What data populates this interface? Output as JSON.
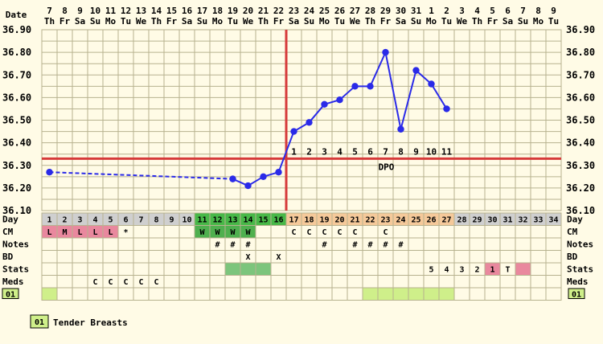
{
  "chart_data": {
    "type": "line",
    "header": {
      "date_label": "Date",
      "dates": [
        "7",
        "8",
        "9",
        "10",
        "11",
        "12",
        "13",
        "14",
        "15",
        "16",
        "17",
        "18",
        "19",
        "20",
        "21",
        "22",
        "23",
        "24",
        "25",
        "26",
        "27",
        "28",
        "29",
        "30",
        "31",
        "1",
        "2",
        "3",
        "4",
        "5",
        "6",
        "7",
        "8",
        "9"
      ],
      "weekdays": [
        "Th",
        "Fr",
        "Sa",
        "Su",
        "Mo",
        "Tu",
        "We",
        "Th",
        "Fr",
        "Sa",
        "Su",
        "Mo",
        "Tu",
        "We",
        "Th",
        "Fr",
        "Sa",
        "Su",
        "Mo",
        "Tu",
        "We",
        "Th",
        "Fr",
        "Sa",
        "Su",
        "Mo",
        "Tu",
        "We",
        "Th",
        "Fr",
        "Sa",
        "Su",
        "Mo",
        "Tu"
      ]
    },
    "y_ticks": [
      "36.90",
      "36.80",
      "36.70",
      "36.60",
      "36.50",
      "36.40",
      "36.30",
      "36.20",
      "36.10"
    ],
    "ylim": [
      36.1,
      36.9
    ],
    "coverline": 36.33,
    "ovulation_day": 16,
    "dpo_label": "DPO",
    "dpo_numbers": [
      "1",
      "2",
      "3",
      "4",
      "5",
      "6",
      "7",
      "8",
      "9",
      "10",
      "11"
    ],
    "temps": [
      {
        "day": 1,
        "temp": 36.27
      },
      {
        "day": 13,
        "temp": 36.24
      },
      {
        "day": 14,
        "temp": 36.21
      },
      {
        "day": 15,
        "temp": 36.25
      },
      {
        "day": 16,
        "temp": 36.27
      },
      {
        "day": 17,
        "temp": 36.45
      },
      {
        "day": 18,
        "temp": 36.49
      },
      {
        "day": 19,
        "temp": 36.57
      },
      {
        "day": 20,
        "temp": 36.59
      },
      {
        "day": 21,
        "temp": 36.65
      },
      {
        "day": 22,
        "temp": 36.65
      },
      {
        "day": 23,
        "temp": 36.8
      },
      {
        "day": 24,
        "temp": 36.46
      },
      {
        "day": 25,
        "temp": 36.72
      },
      {
        "day": 26,
        "temp": 36.66
      },
      {
        "day": 27,
        "temp": 36.55
      }
    ],
    "rows": {
      "day": {
        "label": "Day"
      },
      "cm": {
        "label": "CM",
        "cells": {
          "1": "L",
          "2": "M",
          "3": "L",
          "4": "L",
          "5": "L",
          "6": "*",
          "11": "W",
          "12": "W",
          "13": "W",
          "14": "W",
          "17": "C",
          "18": "C",
          "19": "C",
          "20": "C",
          "21": "C",
          "23": "C"
        }
      },
      "notes": {
        "label": "Notes",
        "cells": {
          "12": "#",
          "13": "#",
          "14": "#",
          "19": "#",
          "21": "#",
          "22": "#",
          "23": "#",
          "24": "#"
        }
      },
      "bd": {
        "label": "BD",
        "cells": {
          "14": "X",
          "16": "X"
        }
      },
      "stats": {
        "label": "Stats",
        "cells": {
          "26": "5",
          "27": "4",
          "28": "3",
          "29": "2",
          "30": "1",
          "31": "T"
        }
      },
      "meds": {
        "label": "Meds",
        "cells": {
          "4": "C",
          "5": "C",
          "6": "C",
          "7": "C",
          "8": "C"
        }
      },
      "symptom": {
        "label": "01"
      }
    },
    "legend": {
      "code": "01",
      "text": "Tender Breasts"
    },
    "colors": {
      "background": "#fffbe6",
      "grid": "#b7b28f",
      "line": "#2a2ae8",
      "red": "#d63a3a",
      "day_grey": "#cfcfcf",
      "day_green": "#48b848",
      "day_orange": "#f5c99a",
      "cm_pink": "#e9889e",
      "cm_green": "#4fb04f",
      "bd_green": "#7cc57c",
      "stats_pink": "#e9889e",
      "symptom_green": "#cfef8a"
    }
  }
}
